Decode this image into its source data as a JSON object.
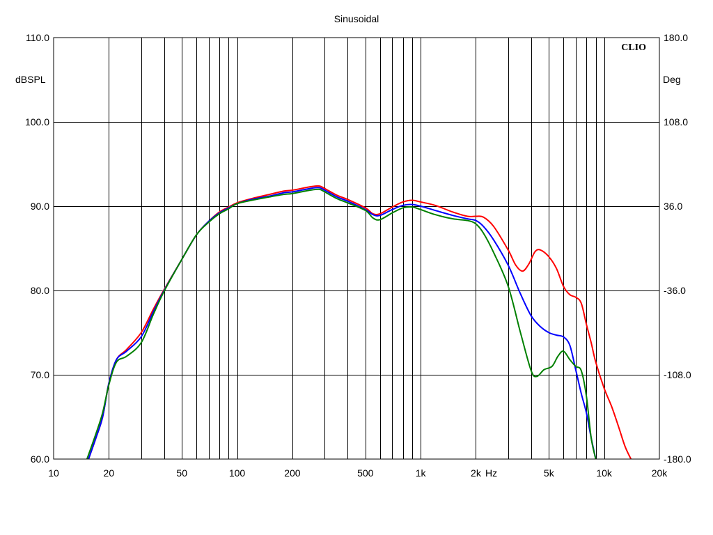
{
  "chart_data": {
    "type": "line",
    "title": "Sinusoidal",
    "brand": "CLIO",
    "ylabel": "dBSPL",
    "y2label": "Deg",
    "xunit": "Hz",
    "xscale": "log",
    "xlim": [
      10,
      20000
    ],
    "ylim": [
      60,
      110
    ],
    "y2lim": [
      -180,
      180
    ],
    "grid": true,
    "x_ticks": [
      {
        "value": 10,
        "label": "10"
      },
      {
        "value": 20,
        "label": "20"
      },
      {
        "value": 50,
        "label": "50"
      },
      {
        "value": 100,
        "label": "100"
      },
      {
        "value": 200,
        "label": "200"
      },
      {
        "value": 500,
        "label": "500"
      },
      {
        "value": 1000,
        "label": "1k"
      },
      {
        "value": 2000,
        "label": "2k"
      },
      {
        "value": 5000,
        "label": "5k"
      },
      {
        "value": 10000,
        "label": "10k"
      },
      {
        "value": 20000,
        "label": "20k"
      }
    ],
    "y_ticks": [
      {
        "value": 60,
        "label": "60.0"
      },
      {
        "value": 70,
        "label": "70.0"
      },
      {
        "value": 80,
        "label": "80.0"
      },
      {
        "value": 90,
        "label": "90.0"
      },
      {
        "value": 100,
        "label": "100.0"
      },
      {
        "value": 110,
        "label": "110.0"
      }
    ],
    "y2_ticks": [
      {
        "value": -180,
        "label": "-180.0"
      },
      {
        "value": -108,
        "label": "-108.0"
      },
      {
        "value": -36,
        "label": "-36.0"
      },
      {
        "value": 36,
        "label": "36.0"
      },
      {
        "value": 108,
        "label": "108.0"
      },
      {
        "value": 180,
        "label": "180.0"
      }
    ],
    "series": [
      {
        "color": "#ff0000",
        "points": [
          [
            15.5,
            60
          ],
          [
            17,
            62.5
          ],
          [
            18.5,
            65
          ],
          [
            20,
            69
          ],
          [
            22,
            71.8
          ],
          [
            25,
            73
          ],
          [
            30,
            75
          ],
          [
            35,
            77.8
          ],
          [
            40,
            80.1
          ],
          [
            50,
            83.7
          ],
          [
            60,
            86.6
          ],
          [
            70,
            88.2
          ],
          [
            80,
            89.3
          ],
          [
            90,
            89.9
          ],
          [
            100,
            90.4
          ],
          [
            120,
            90.9
          ],
          [
            150,
            91.4
          ],
          [
            180,
            91.8
          ],
          [
            200,
            91.9
          ],
          [
            250,
            92.3
          ],
          [
            280,
            92.4
          ],
          [
            300,
            92.1
          ],
          [
            350,
            91.3
          ],
          [
            400,
            90.8
          ],
          [
            500,
            89.8
          ],
          [
            550,
            89.1
          ],
          [
            600,
            89.1
          ],
          [
            700,
            89.9
          ],
          [
            800,
            90.5
          ],
          [
            900,
            90.7
          ],
          [
            1000,
            90.5
          ],
          [
            1200,
            90.1
          ],
          [
            1500,
            89.3
          ],
          [
            1800,
            88.8
          ],
          [
            2000,
            88.8
          ],
          [
            2200,
            88.7
          ],
          [
            2500,
            87.6
          ],
          [
            3000,
            84.8
          ],
          [
            3300,
            83
          ],
          [
            3600,
            82.3
          ],
          [
            3900,
            83.2
          ],
          [
            4200,
            84.6
          ],
          [
            4500,
            84.8
          ],
          [
            5000,
            84
          ],
          [
            5500,
            82.6
          ],
          [
            6000,
            80.5
          ],
          [
            6500,
            79.5
          ],
          [
            7000,
            79.2
          ],
          [
            7500,
            78.5
          ],
          [
            8000,
            76
          ],
          [
            8500,
            73.8
          ],
          [
            9000,
            71.5
          ],
          [
            10000,
            68.4
          ],
          [
            11000,
            66.2
          ],
          [
            12000,
            63.8
          ],
          [
            13000,
            61.5
          ],
          [
            14000,
            60
          ]
        ]
      },
      {
        "color": "#0000ff",
        "points": [
          [
            15.5,
            60
          ],
          [
            17,
            62.5
          ],
          [
            18.5,
            65
          ],
          [
            20,
            69
          ],
          [
            22,
            71.8
          ],
          [
            25,
            72.8
          ],
          [
            30,
            74.5
          ],
          [
            35,
            77.5
          ],
          [
            40,
            80
          ],
          [
            50,
            83.7
          ],
          [
            60,
            86.6
          ],
          [
            70,
            88.2
          ],
          [
            80,
            89.2
          ],
          [
            90,
            89.8
          ],
          [
            100,
            90.3
          ],
          [
            120,
            90.8
          ],
          [
            150,
            91.2
          ],
          [
            180,
            91.6
          ],
          [
            200,
            91.7
          ],
          [
            250,
            92.1
          ],
          [
            280,
            92.2
          ],
          [
            300,
            91.9
          ],
          [
            350,
            91.1
          ],
          [
            400,
            90.6
          ],
          [
            500,
            89.6
          ],
          [
            550,
            89
          ],
          [
            600,
            88.9
          ],
          [
            700,
            89.6
          ],
          [
            800,
            90.1
          ],
          [
            900,
            90.2
          ],
          [
            1000,
            90
          ],
          [
            1200,
            89.5
          ],
          [
            1500,
            88.9
          ],
          [
            1800,
            88.5
          ],
          [
            2000,
            88.3
          ],
          [
            2200,
            87.6
          ],
          [
            2500,
            86
          ],
          [
            3000,
            83
          ],
          [
            3500,
            79.6
          ],
          [
            4000,
            77
          ],
          [
            4500,
            75.7
          ],
          [
            5000,
            75
          ],
          [
            5500,
            74.7
          ],
          [
            6000,
            74.5
          ],
          [
            6500,
            73.5
          ],
          [
            7000,
            70.6
          ],
          [
            7500,
            67.8
          ],
          [
            8000,
            65.5
          ],
          [
            8500,
            62.5
          ],
          [
            9000,
            60
          ]
        ]
      },
      {
        "color": "#008000",
        "points": [
          [
            15.2,
            60
          ],
          [
            17,
            63
          ],
          [
            18.5,
            65.5
          ],
          [
            20,
            68.8
          ],
          [
            22,
            71.5
          ],
          [
            25,
            72.2
          ],
          [
            30,
            73.8
          ],
          [
            35,
            77.2
          ],
          [
            40,
            79.9
          ],
          [
            50,
            83.7
          ],
          [
            60,
            86.6
          ],
          [
            70,
            88.1
          ],
          [
            80,
            89.1
          ],
          [
            90,
            89.7
          ],
          [
            100,
            90.3
          ],
          [
            120,
            90.7
          ],
          [
            150,
            91.1
          ],
          [
            180,
            91.4
          ],
          [
            200,
            91.5
          ],
          [
            250,
            91.9
          ],
          [
            280,
            92
          ],
          [
            300,
            91.7
          ],
          [
            350,
            90.9
          ],
          [
            400,
            90.4
          ],
          [
            500,
            89.5
          ],
          [
            550,
            88.6
          ],
          [
            600,
            88.4
          ],
          [
            700,
            89.2
          ],
          [
            800,
            89.8
          ],
          [
            900,
            89.9
          ],
          [
            1000,
            89.6
          ],
          [
            1200,
            89
          ],
          [
            1500,
            88.5
          ],
          [
            1800,
            88.3
          ],
          [
            2000,
            87.9
          ],
          [
            2200,
            86.8
          ],
          [
            2500,
            84.5
          ],
          [
            3000,
            80.5
          ],
          [
            3500,
            75
          ],
          [
            4000,
            70.5
          ],
          [
            4300,
            69.8
          ],
          [
            4700,
            70.6
          ],
          [
            5200,
            71
          ],
          [
            5600,
            72.2
          ],
          [
            6000,
            72.8
          ],
          [
            6500,
            71.8
          ],
          [
            7000,
            71
          ],
          [
            7500,
            70.5
          ],
          [
            8000,
            67.5
          ],
          [
            8500,
            62.5
          ],
          [
            9000,
            60
          ]
        ]
      }
    ]
  }
}
